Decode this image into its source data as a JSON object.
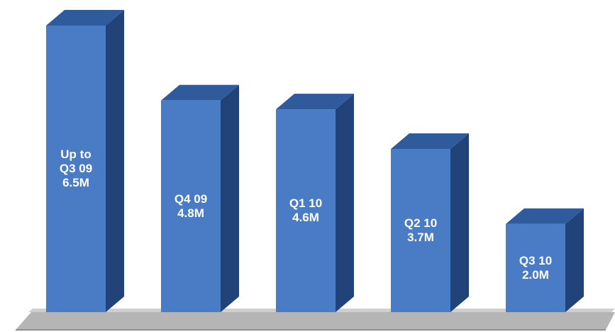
{
  "chart_data": {
    "type": "bar",
    "style": "3d",
    "categories": [
      "Up to Q3 09",
      "Q4 09",
      "Q1 10",
      "Q2 10",
      "Q3 10"
    ],
    "values": [
      6.5,
      4.8,
      4.6,
      3.7,
      2.0
    ],
    "unit": "M",
    "bar_labels": [
      [
        "Up to",
        "Q3 09",
        "6.5M"
      ],
      [
        "Q4 09",
        "4.8M"
      ],
      [
        "Q1 10",
        "4.6M"
      ],
      [
        "Q2 10",
        "3.7M"
      ],
      [
        "Q3 10",
        "2.0M"
      ]
    ],
    "title": "",
    "xlabel": "",
    "ylabel": "",
    "grid": false,
    "legend": "none",
    "colors": {
      "bar_front": "#4a7cc6",
      "bar_side": "#21437a",
      "bar_top": "#2f5a9c",
      "floor": "#b5b5b5",
      "floor_edge": "#8e8e8e",
      "label": "#ffffff"
    }
  }
}
